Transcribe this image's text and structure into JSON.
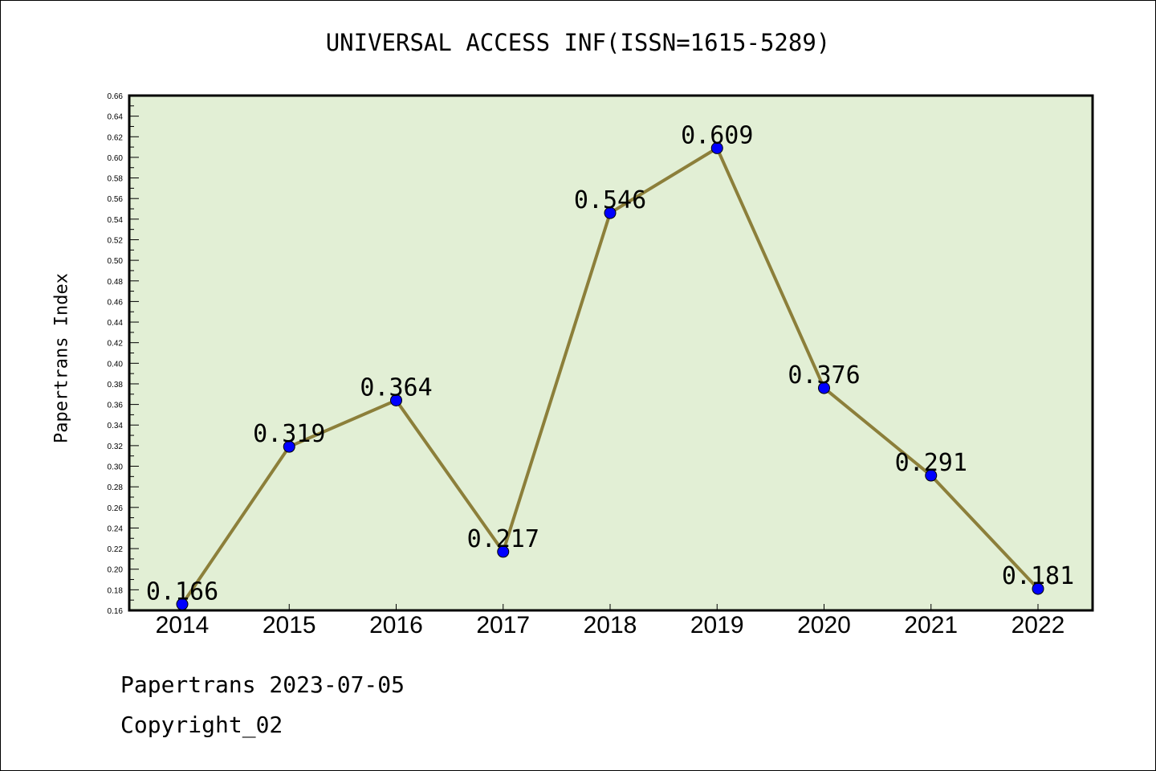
{
  "title": "UNIVERSAL ACCESS INF(ISSN=1615-5289)",
  "footer": {
    "date_line": "Papertrans 2023-07-05",
    "copyright": "Copyright_02"
  },
  "colors": {
    "plot_background": "#e2efd5",
    "line": "#8c7f3a",
    "marker": "#0000ff"
  },
  "chart_data": {
    "type": "line",
    "title": "UNIVERSAL ACCESS INF(ISSN=1615-5289)",
    "xlabel": "",
    "ylabel": "Papertrans Index",
    "categories": [
      "2014",
      "2015",
      "2016",
      "2017",
      "2018",
      "2019",
      "2020",
      "2021",
      "2022"
    ],
    "series": [
      {
        "values": [
          0.166,
          0.319,
          0.364,
          0.217,
          0.546,
          0.609,
          0.376,
          0.291,
          0.181
        ],
        "labels": [
          "0.166",
          "0.319",
          "0.364",
          "0.217",
          "0.546",
          "0.609",
          "0.376",
          "0.291",
          "0.181"
        ]
      }
    ],
    "ylim": [
      0.16,
      0.66
    ],
    "yticks": [
      "0.16",
      "0.18",
      "0.20",
      "0.22",
      "0.24",
      "0.26",
      "0.28",
      "0.30",
      "0.32",
      "0.34",
      "0.36",
      "0.38",
      "0.40",
      "0.42",
      "0.44",
      "0.46",
      "0.48",
      "0.50",
      "0.52",
      "0.54",
      "0.56",
      "0.58",
      "0.60",
      "0.62",
      "0.64",
      "0.66"
    ],
    "grid": false,
    "legend": "none"
  }
}
